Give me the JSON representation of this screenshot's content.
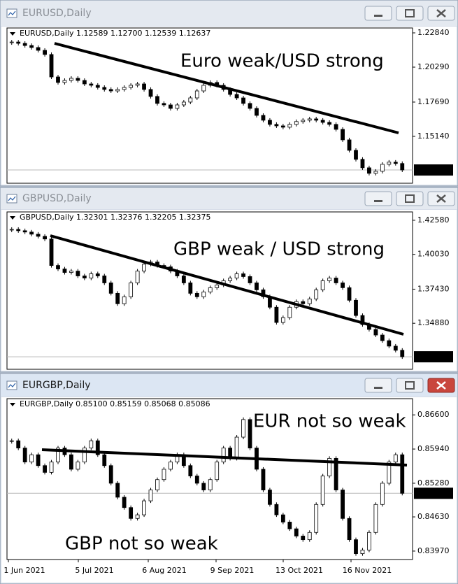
{
  "chart_data": [
    {
      "type": "candlestick",
      "window_title": "EURUSD,Daily",
      "header": "EURUSD,Daily  1.12589 1.12700 1.12539 1.12637",
      "annotations": [
        "Euro weak/USD strong"
      ],
      "values": [
        1.2216,
        1.2206,
        1.219,
        1.2175,
        1.2154,
        1.2123,
        1.1956,
        1.1915,
        1.193,
        1.1946,
        1.193,
        1.1904,
        1.1894,
        1.1878,
        1.1863,
        1.1852,
        1.1863,
        1.1878,
        1.1894,
        1.1904,
        1.1863,
        1.1811,
        1.1759,
        1.1748,
        1.1722,
        1.1748,
        1.1769,
        1.18,
        1.1852,
        1.1894,
        1.1915,
        1.1894,
        1.1863,
        1.1826,
        1.18,
        1.1759,
        1.1722,
        1.167,
        1.1634,
        1.1603,
        1.1592,
        1.1582,
        1.1603,
        1.1624,
        1.1634,
        1.1644,
        1.1634,
        1.1618,
        1.1603,
        1.1566,
        1.1488,
        1.141,
        1.1343,
        1.128,
        1.1239,
        1.1254,
        1.1306,
        1.1322,
        1.1312,
        1.1264
      ],
      "ylim": [
        1.11651,
        1.23204
      ],
      "yticks": [
        {
          "value": 1.2284,
          "label": "1.22840"
        },
        {
          "value": 1.2029,
          "label": "1.20290"
        },
        {
          "value": 1.1769,
          "label": "1.17690"
        },
        {
          "value": 1.1514,
          "label": "1.15140"
        }
      ],
      "last_price": 1.12637
    },
    {
      "type": "candlestick",
      "window_title": "GBPUSD,Daily",
      "header": "GBPUSD,Daily  1.32301 1.32376 1.32205 1.32375",
      "annotations": [
        "GBP weak / USD strong"
      ],
      "values": [
        1.419,
        1.418,
        1.417,
        1.4154,
        1.4138,
        1.4118,
        1.392,
        1.3894,
        1.3868,
        1.3878,
        1.3842,
        1.3826,
        1.3858,
        1.3842,
        1.379,
        1.3712,
        1.3634,
        1.3686,
        1.379,
        1.3878,
        1.393,
        1.3946,
        1.392,
        1.391,
        1.3878,
        1.3842,
        1.379,
        1.3712,
        1.3686,
        1.3722,
        1.3754,
        1.3774,
        1.3806,
        1.3826,
        1.3858,
        1.3837,
        1.379,
        1.3738,
        1.3686,
        1.3608,
        1.3494,
        1.353,
        1.3608,
        1.365,
        1.3634,
        1.367,
        1.3738,
        1.3806,
        1.3826,
        1.379,
        1.3754,
        1.366,
        1.3546,
        1.3478,
        1.3442,
        1.34,
        1.3358,
        1.3317,
        1.3286,
        1.32375
      ],
      "ylim": [
        1.31439,
        1.43205
      ],
      "yticks": [
        {
          "value": 1.4258,
          "label": "1.42580"
        },
        {
          "value": 1.4003,
          "label": "1.40030"
        },
        {
          "value": 1.3743,
          "label": "1.37430"
        },
        {
          "value": 1.3488,
          "label": "1.34880"
        }
      ],
      "last_price": 1.32375
    },
    {
      "type": "candlestick",
      "window_title": "EURGBP,Daily",
      "header": "EURGBP,Daily  0.85100 0.85159 0.85068 0.85086",
      "annotations": [
        "EUR not so weak",
        "GBP not so weak"
      ],
      "values": [
        0.861,
        0.8596,
        0.8569,
        0.8583,
        0.8562,
        0.8549,
        0.8569,
        0.8596,
        0.8583,
        0.8555,
        0.8569,
        0.8596,
        0.861,
        0.8583,
        0.8562,
        0.8528,
        0.8501,
        0.8481,
        0.846,
        0.8467,
        0.8494,
        0.8515,
        0.8535,
        0.8555,
        0.8569,
        0.8583,
        0.8562,
        0.8542,
        0.8528,
        0.8515,
        0.8535,
        0.8569,
        0.8596,
        0.8576,
        0.8617,
        0.8651,
        0.8596,
        0.8555,
        0.8515,
        0.8487,
        0.8467,
        0.8453,
        0.844,
        0.8426,
        0.8419,
        0.8433,
        0.8487,
        0.8542,
        0.8576,
        0.8515,
        0.846,
        0.8419,
        0.8392,
        0.8399,
        0.8433,
        0.8487,
        0.8528,
        0.8569,
        0.8583,
        0.85086
      ],
      "ylim": [
        0.83807,
        0.86913
      ],
      "yticks": [
        {
          "value": 0.866,
          "label": "0.86600"
        },
        {
          "value": 0.8594,
          "label": "0.85940"
        },
        {
          "value": 0.8528,
          "label": "0.85280"
        },
        {
          "value": 0.8463,
          "label": "0.84630"
        },
        {
          "value": 0.8397,
          "label": "0.83970"
        }
      ],
      "xtick_labels": [
        "1 Jun 2021",
        "5 Jul 2021",
        "6 Aug 2021",
        "9 Sep 2021",
        "13 Oct 2021",
        "16 Nov 2021"
      ],
      "last_price": 0.85086
    }
  ]
}
